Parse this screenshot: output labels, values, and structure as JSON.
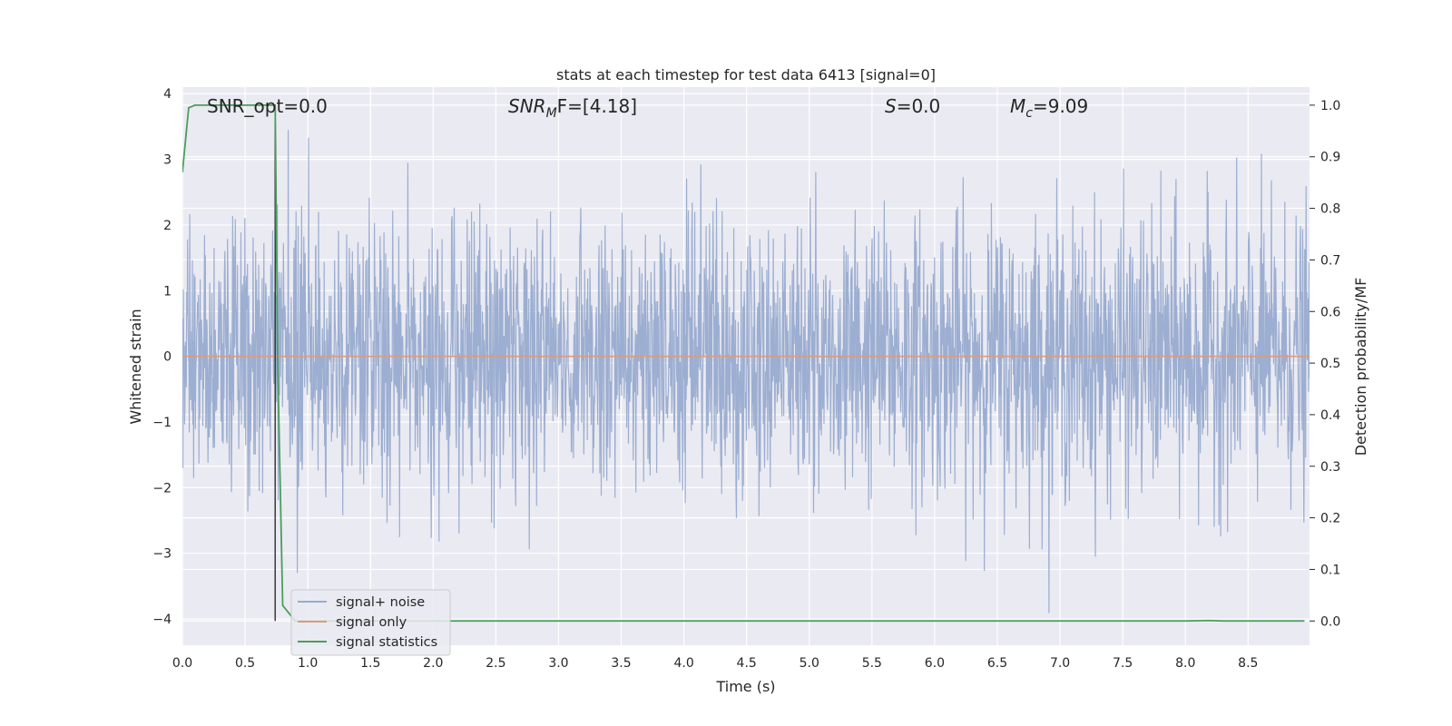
{
  "chart_data": {
    "type": "line",
    "title": "stats at each timestep for test data 6413 [signal=0]",
    "xlabel": "Time (s)",
    "ylabel_left": "Whitened strain",
    "ylabel_right": "Detection probability/MF",
    "xlim": [
      0.0,
      8.99
    ],
    "ylim_left": [
      -4.4,
      4.1
    ],
    "ylim_right": [
      -0.047,
      1.035
    ],
    "x_ticks": [
      "0.0",
      "0.5",
      "1.0",
      "1.5",
      "2.0",
      "2.5",
      "3.0",
      "3.5",
      "4.0",
      "4.5",
      "5.0",
      "5.5",
      "6.0",
      "6.5",
      "7.0",
      "7.5",
      "8.0",
      "8.5"
    ],
    "y_left_ticks": [
      "−4",
      "−3",
      "−2",
      "−1",
      "0",
      "1",
      "2",
      "3",
      "4"
    ],
    "y_right_ticks": [
      "0.0",
      "0.1",
      "0.2",
      "0.3",
      "0.4",
      "0.5",
      "0.6",
      "0.7",
      "0.8",
      "0.9",
      "1.0"
    ],
    "grid": true,
    "annotations": {
      "snr_opt": "SNR_opt=0.0",
      "snr_mf_base": "SNR",
      "snr_mf_sub": "M",
      "snr_mf_rest": "F=[4.18]",
      "s_sym": "S",
      "s_val": "=0.0",
      "mc_sym": "M",
      "mc_sub": "c",
      "mc_val": "=9.09"
    },
    "vertical_line_x": 0.74,
    "legend": {
      "position": "lower-left",
      "entries": [
        "signal+ noise",
        "signal only",
        "signal statistics"
      ]
    },
    "series": [
      {
        "name": "signal+ noise",
        "color": "#98abcf",
        "axis": "left",
        "description_values": {
          "typical_abs": 1.3,
          "max": 3.82,
          "min": -4.0
        }
      },
      {
        "name": "signal only",
        "color": "#dd9c7a",
        "axis": "left",
        "x": [
          0.0,
          8.99
        ],
        "y": [
          0,
          0
        ]
      },
      {
        "name": "signal statistics",
        "color": "#4a9e5c",
        "axis": "right",
        "x": [
          0.0,
          0.05,
          0.1,
          0.2,
          0.3,
          0.5,
          0.7,
          0.74,
          0.76,
          0.8,
          0.9,
          1.0,
          2.0,
          4.0,
          6.0,
          8.0,
          8.2,
          8.3,
          8.5,
          8.95
        ],
        "y": [
          0.87,
          0.995,
          1.0,
          1.0,
          1.0,
          1.0,
          1.0,
          1.0,
          0.5,
          0.03,
          0.0,
          0.0,
          0.0,
          0.0,
          0.0,
          0.0,
          0.001,
          0.0,
          0.0,
          0.0
        ]
      }
    ]
  },
  "colors": {
    "background": "#eaeaf2",
    "grid": "#ffffff",
    "vline": "#3a3a3a"
  }
}
